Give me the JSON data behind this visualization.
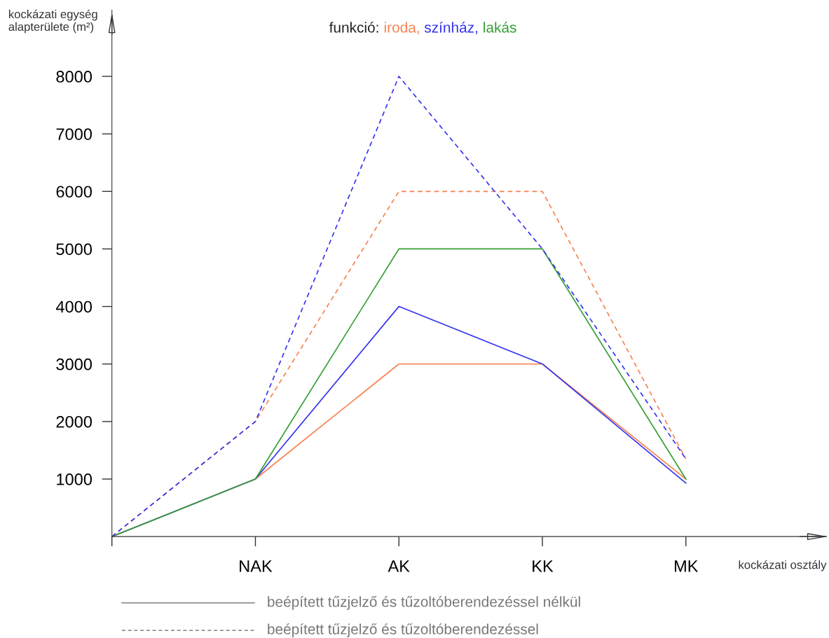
{
  "chart_data": {
    "type": "line",
    "title": "funkció:",
    "xlabel": "kockázati osztály",
    "ylabel": "kockázati egység\nalapterülete (m²)",
    "categories": [
      null,
      "NAK",
      "AK",
      "KK",
      "MK"
    ],
    "ylim": [
      0,
      9150
    ],
    "yticks": [
      1000,
      2000,
      3000,
      4000,
      5000,
      6000,
      7000,
      8000
    ],
    "grid": false,
    "marker": "none",
    "series": [
      {
        "name": "iroda,",
        "color": "#f7804f",
        "line_style": "solid",
        "values": [
          0,
          1000,
          3000,
          3000,
          1000
        ]
      },
      {
        "name": "színház,",
        "color": "#3333ee",
        "line_style": "solid",
        "values": [
          0,
          1000,
          4000,
          3000,
          930
        ]
      },
      {
        "name": "lakás",
        "color": "#33a033",
        "line_style": "solid",
        "values": [
          0,
          1000,
          5000,
          5000,
          1000
        ]
      },
      {
        "color": "#f7804f",
        "line_style": "dashed",
        "values": [
          0,
          2000,
          6000,
          6000,
          1350
        ]
      },
      {
        "color": "#3333ee",
        "line_style": "dashed",
        "values": [
          0,
          2000,
          8000,
          5000,
          1350
        ]
      }
    ],
    "annotations": [
      "beépített tűzjelző és tűzoltóberendezéssel nélkül",
      "beépített tűzjelző és tűzoltóberendezéssel"
    ]
  }
}
